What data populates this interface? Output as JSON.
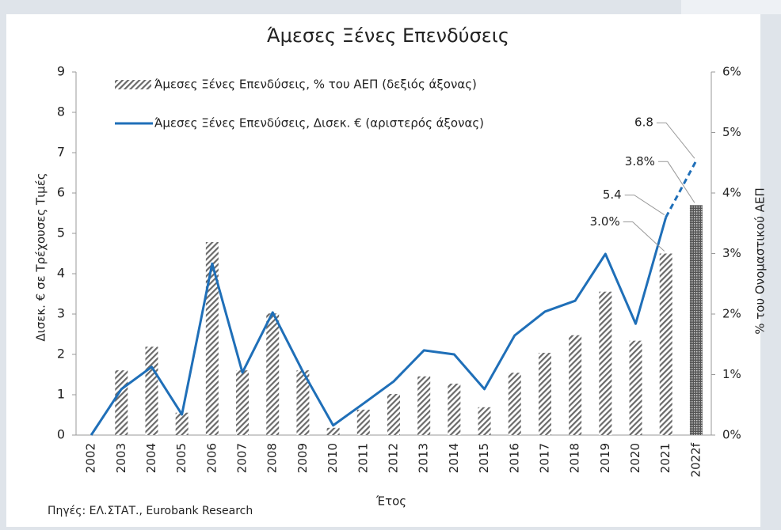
{
  "chart_data": {
    "type": "bar-line",
    "title": "Άμεσες Ξένες Επενδύσεις",
    "x_label": "Έτος",
    "y_label": "Δισεκ. € σε Τρέχουσες Τιμές",
    "y2_label": "% του Ονομαστικού ΑΕΠ",
    "source": "Πηγές: ΕΛ.ΣΤΑΤ., Eurobank Research",
    "categories": [
      "2002",
      "2003",
      "2004",
      "2005",
      "2006",
      "2007",
      "2008",
      "2009",
      "2010",
      "2011",
      "2012",
      "2013",
      "2014",
      "2015",
      "2016",
      "2017",
      "2018",
      "2019",
      "2020",
      "2021",
      "2022f"
    ],
    "series": [
      {
        "name": "Άμεσες Ξένες Επενδύσεις, % του ΑΕΠ (δεξιός άξονας)",
        "type": "bar",
        "axis": "y2",
        "color": "#707070",
        "values": [
          0.0,
          1.07,
          1.46,
          0.37,
          3.19,
          1.07,
          2.01,
          1.07,
          0.12,
          0.42,
          0.68,
          0.97,
          0.85,
          0.46,
          1.03,
          1.36,
          1.65,
          2.37,
          1.56,
          3.0,
          3.8
        ],
        "value_labels": [
          null,
          null,
          null,
          null,
          null,
          null,
          null,
          null,
          null,
          null,
          null,
          null,
          null,
          null,
          null,
          null,
          null,
          null,
          null,
          "3.0%",
          "3.8%"
        ]
      },
      {
        "name": "Άμεσες Ξένες Επενδύσεις, Δισεκ. € (αριστερός άξονας)",
        "type": "line",
        "axis": "y",
        "color": "#1f6fb8",
        "values": [
          0,
          1.14,
          1.69,
          0.51,
          4.25,
          1.55,
          3.04,
          1.57,
          0.24,
          0.78,
          1.33,
          2.1,
          2.0,
          1.14,
          2.47,
          3.06,
          3.33,
          4.49,
          2.76,
          5.4,
          6.8
        ],
        "value_labels": [
          null,
          null,
          null,
          null,
          null,
          null,
          null,
          null,
          null,
          null,
          null,
          null,
          null,
          null,
          null,
          null,
          null,
          null,
          null,
          "5.4",
          "6.8"
        ]
      }
    ],
    "ylim": [
      0,
      9
    ],
    "yticks": [
      0,
      1,
      2,
      3,
      4,
      5,
      6,
      7,
      8,
      9
    ],
    "y2lim": [
      0,
      6
    ],
    "y2ticks": [
      {
        "value": 0,
        "label": "0%"
      },
      {
        "value": 1,
        "label": "1%"
      },
      {
        "value": 2,
        "label": "2%"
      },
      {
        "value": 3,
        "label": "3%"
      },
      {
        "value": 4,
        "label": "4%"
      },
      {
        "value": 5,
        "label": "5%"
      },
      {
        "value": 6,
        "label": "6%"
      }
    ],
    "legend": "top-left"
  }
}
